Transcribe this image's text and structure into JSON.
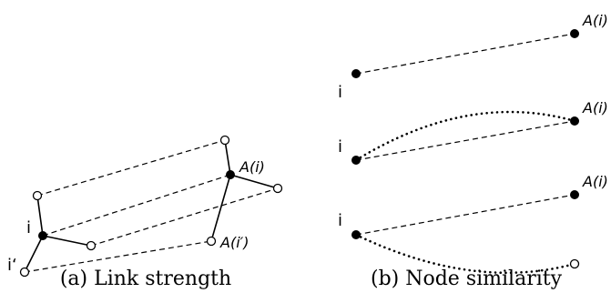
{
  "panel_a": {
    "caption": "(a) Link strength",
    "labels": {
      "i": "i",
      "i_prime": "i‘",
      "a_i": "A(i)",
      "a_i_prime": "A(i′)"
    }
  },
  "panel_b": {
    "caption": "(b) Node similarity",
    "rows": [
      {
        "left": "i",
        "right": "A(i)"
      },
      {
        "left": "i",
        "right": "A(i)"
      },
      {
        "left": "i",
        "right": "A(i)"
      }
    ]
  }
}
